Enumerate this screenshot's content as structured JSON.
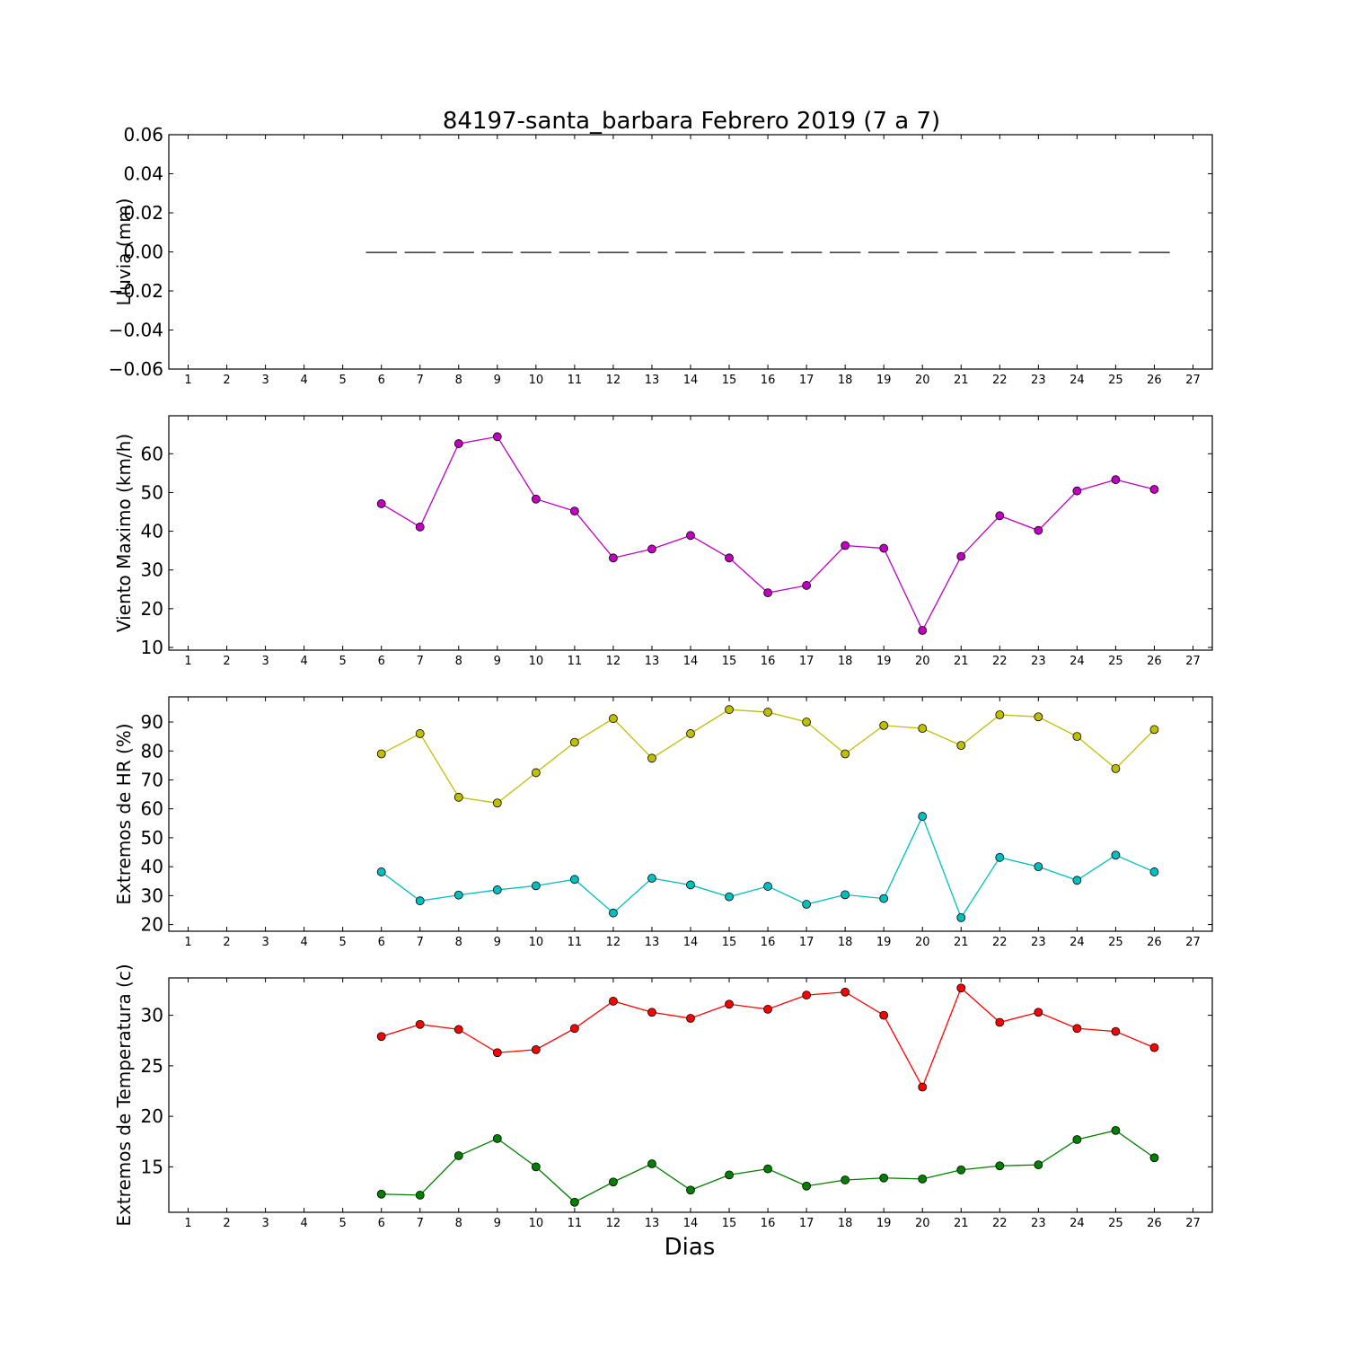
{
  "chart_data": {
    "title": "84197-santa_barbara Febrero 2019  (7 a 7)",
    "xlabel": "Dias",
    "x_ticks": [
      1,
      2,
      3,
      4,
      5,
      6,
      7,
      8,
      9,
      10,
      11,
      12,
      13,
      14,
      15,
      16,
      17,
      18,
      19,
      20,
      21,
      22,
      23,
      24,
      25,
      26,
      27
    ],
    "xlim": [
      0.5,
      27.5
    ],
    "panels": [
      {
        "type": "bar",
        "ylabel": "Lluvia (mm)",
        "ylim": [
          -0.06,
          0.06
        ],
        "yticks": [
          0.06,
          0.04,
          0.02,
          0.0,
          -0.02,
          -0.04,
          -0.06
        ],
        "ytick_labels": [
          "0.06",
          "0.04",
          "0.02",
          "0.00",
          "−0.02",
          "−0.04",
          "−0.06"
        ],
        "series": [
          {
            "color": "#000000",
            "x": [
              6,
              7,
              8,
              9,
              10,
              11,
              12,
              13,
              14,
              15,
              16,
              17,
              18,
              19,
              20,
              21,
              22,
              23,
              24,
              25,
              26
            ],
            "values": [
              0,
              0,
              0,
              0,
              0,
              0,
              0,
              0,
              0,
              0,
              0,
              0,
              0,
              0,
              0,
              0,
              0,
              0,
              0,
              0,
              0
            ]
          }
        ]
      },
      {
        "type": "line",
        "ylabel": "Viento Maximo (km/h)",
        "ylim": [
          9.3,
          69.8
        ],
        "yticks": [
          60,
          50,
          40,
          30,
          20,
          10
        ],
        "ytick_labels": [
          "60",
          "50",
          "40",
          "30",
          "20",
          "10"
        ],
        "series": [
          {
            "color": "#bf00bf",
            "x": [
              6,
              7,
              8,
              9,
              10,
              11,
              12,
              13,
              14,
              15,
              16,
              17,
              18,
              19,
              20,
              21,
              22,
              23,
              24,
              25,
              26
            ],
            "values": [
              47.1,
              41.1,
              62.6,
              64.4,
              48.3,
              45.2,
              33.1,
              35.4,
              38.9,
              33.1,
              24.1,
              26.0,
              36.3,
              35.6,
              14.4,
              33.5,
              44.0,
              40.2,
              50.4,
              53.3,
              50.8
            ]
          }
        ]
      },
      {
        "type": "line",
        "ylabel": "Extremos de HR (%)",
        "ylim": [
          17.7,
          98.7
        ],
        "yticks": [
          90,
          80,
          70,
          60,
          50,
          40,
          30,
          20
        ],
        "ytick_labels": [
          "90",
          "80",
          "70",
          "60",
          "50",
          "40",
          "30",
          "20"
        ],
        "series": [
          {
            "color": "#bfbf00",
            "x": [
              6,
              7,
              8,
              9,
              10,
              11,
              12,
              13,
              14,
              15,
              16,
              17,
              18,
              19,
              20,
              21,
              22,
              23,
              24,
              25,
              26
            ],
            "values": [
              79,
              86,
              64,
              62,
              72.5,
              83,
              91.2,
              77.5,
              86,
              94.3,
              93.4,
              90,
              79,
              88.8,
              87.8,
              81.9,
              92.5,
              91.8,
              85,
              73.9,
              87.4
            ]
          },
          {
            "color": "#00bfbf",
            "x": [
              6,
              7,
              8,
              9,
              10,
              11,
              12,
              13,
              14,
              15,
              16,
              17,
              18,
              19,
              20,
              21,
              22,
              23,
              24,
              25,
              26
            ],
            "values": [
              38.2,
              28.2,
              30.2,
              32,
              33.4,
              35.6,
              24,
              36,
              33.7,
              29.6,
              33.2,
              27,
              30.3,
              29,
              57.4,
              22.4,
              43.2,
              40,
              35.3,
              44,
              38.2
            ]
          }
        ]
      },
      {
        "type": "line",
        "ylabel": "Extremos de Temperatura (c)",
        "ylim": [
          10.5,
          33.7
        ],
        "yticks": [
          30,
          25,
          20,
          15
        ],
        "ytick_labels": [
          "30",
          "25",
          "20",
          "15"
        ],
        "series": [
          {
            "color": "#ff0000",
            "x": [
              6,
              7,
              8,
              9,
              10,
              11,
              12,
              13,
              14,
              15,
              16,
              17,
              18,
              19,
              20,
              21,
              22,
              23,
              24,
              25,
              26
            ],
            "values": [
              27.9,
              29.1,
              28.6,
              26.3,
              26.6,
              28.7,
              31.4,
              30.3,
              29.7,
              31.1,
              30.6,
              32.0,
              32.3,
              30.0,
              22.9,
              32.7,
              29.3,
              30.3,
              28.7,
              28.4,
              26.8
            ]
          },
          {
            "color": "#007f00",
            "x": [
              6,
              7,
              8,
              9,
              10,
              11,
              12,
              13,
              14,
              15,
              16,
              17,
              18,
              19,
              20,
              21,
              22,
              23,
              24,
              25,
              26
            ],
            "values": [
              12.3,
              12.2,
              16.1,
              17.8,
              15.0,
              11.5,
              13.5,
              15.3,
              12.7,
              14.2,
              14.8,
              13.1,
              13.7,
              13.9,
              13.8,
              14.7,
              15.1,
              15.2,
              17.7,
              18.6,
              15.9
            ]
          }
        ]
      }
    ]
  }
}
